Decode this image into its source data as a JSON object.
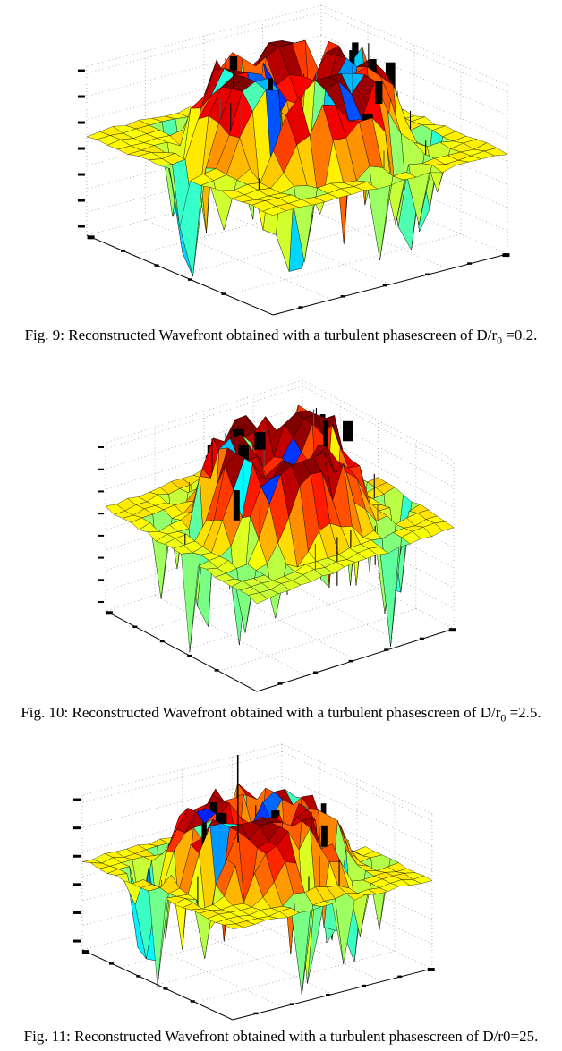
{
  "page": {
    "kind": "journal-paper-figure-page",
    "background": "#ffffff"
  },
  "figures": [
    {
      "id": "fig-9",
      "caption": {
        "prefix": "Fig. 9:",
        "body": " Reconstructed Wavefront obtained with a turbulent phasescreen  of D/r",
        "sub": "0",
        "tail": " =0.2."
      },
      "plot": {
        "type": "3d-surface-mesh",
        "description": "MATLAB-style surf plot: red/dark-red annular crest over a yellow base plane with downward yellow/blue spikes and black vertical bars; jet colormap; dotted 3-D box grid",
        "colormap": "jet",
        "z_ticks": 7,
        "x_ticks": 5,
        "y_ticks": 6,
        "tick_labels": "none",
        "grid": "dotted"
      }
    },
    {
      "id": "fig-10",
      "caption": {
        "prefix": "Fig. 10:",
        "body": " Reconstructed Wavefront obtained with a turbulent phasescreen  of D/r",
        "sub": "0",
        "tail": " =2.5."
      },
      "plot": {
        "type": "3d-surface-mesh",
        "description": "MATLAB-style surf plot: tilted yellow base plane (higher at back-left) with red/orange dome crest, hanging spikes, black bars; jet colormap; dotted 3-D box grid",
        "colormap": "jet",
        "z_ticks": 8,
        "x_ticks": 5,
        "y_ticks": 6,
        "tick_labels": "none",
        "grid": "dotted"
      }
    },
    {
      "id": "fig-11",
      "caption": {
        "prefix": "Fig. 11:",
        "body": " Reconstructed Wavefront obtained with a turbulent phasescreen  of D/r0=25.",
        "sub": "",
        "tail": ""
      },
      "plot": {
        "type": "3d-surface-mesh",
        "description": "MATLAB-style surf plot: flatter red/orange crest on yellow plane with spikes, black bars and one tall thin black spike rising from the center above the dome; jet colormap; dotted 3-D box grid",
        "colormap": "jet",
        "z_ticks": 6,
        "x_ticks": 5,
        "y_ticks": 6,
        "tick_labels": "none",
        "grid": "dotted"
      }
    }
  ]
}
